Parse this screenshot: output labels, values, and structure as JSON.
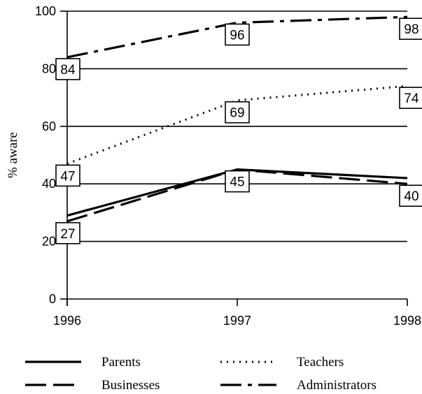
{
  "chart_data": {
    "type": "line",
    "title": "",
    "xlabel": "",
    "ylabel": "% aware",
    "x": [
      "1996",
      "1997",
      "1998"
    ],
    "ylim": [
      0,
      100
    ],
    "yticks": [
      0,
      20,
      40,
      60,
      80,
      100
    ],
    "grid": true,
    "legend_position": "bottom",
    "series": [
      {
        "name": "Parents",
        "values": [
          29,
          45,
          42
        ],
        "style": "solid"
      },
      {
        "name": "Businesses",
        "values": [
          27,
          45,
          40
        ],
        "style": "dash"
      },
      {
        "name": "Teachers",
        "values": [
          47,
          69,
          74
        ],
        "style": "dot"
      },
      {
        "name": "Administrators",
        "values": [
          84,
          96,
          98
        ],
        "style": "dashdot"
      }
    ],
    "data_labels": [
      {
        "x": "1996",
        "y": 84,
        "text": "84"
      },
      {
        "x": "1997",
        "y": 96,
        "text": "96"
      },
      {
        "x": "1998",
        "y": 98,
        "text": "98"
      },
      {
        "x": "1996",
        "y": 47,
        "text": "47"
      },
      {
        "x": "1997",
        "y": 69,
        "text": "69"
      },
      {
        "x": "1998",
        "y": 74,
        "text": "74"
      },
      {
        "x": "1996",
        "y": 27,
        "text": "27"
      },
      {
        "x": "1997",
        "y": 45,
        "text": "45"
      },
      {
        "x": "1998",
        "y": 40,
        "text": "40"
      }
    ]
  }
}
